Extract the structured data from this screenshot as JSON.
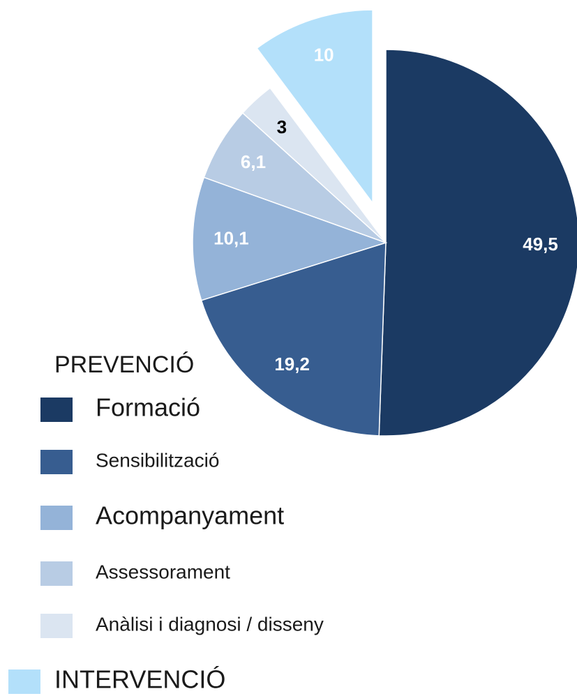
{
  "chart_data": {
    "type": "pie",
    "categories": [
      "Formació",
      "Sensibilització",
      "Acompanyament",
      "Assessorament",
      "Anàlisi i diagnosi / disseny",
      "INTERVENCIÓ"
    ],
    "values": [
      49.5,
      19.2,
      10.1,
      6.1,
      3,
      10
    ],
    "value_labels": [
      "49,5",
      "19,2",
      "10,1",
      "6,1",
      "3",
      "10"
    ],
    "colors": [
      "#1b3a63",
      "#375d90",
      "#94b3d8",
      "#b8cce4",
      "#dbe5f1",
      "#b3e0fa"
    ],
    "legend_group": "PREVENCIÓ"
  }
}
